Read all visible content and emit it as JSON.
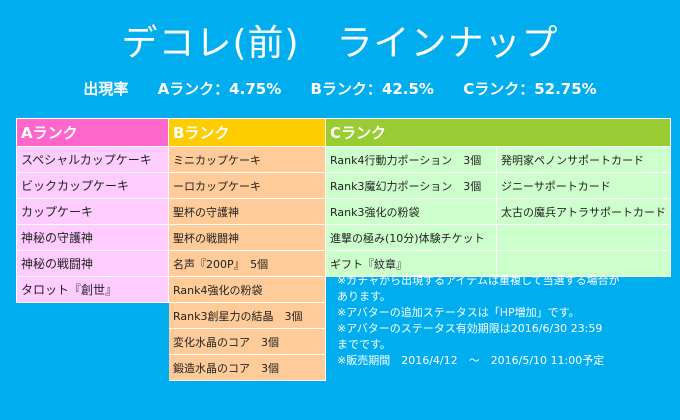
{
  "title": "デコレ(前)　ラインナップ",
  "rates": {
    "label": "出現率",
    "a": "Aランク：4.75%",
    "b": "Bランク：42.5%",
    "c": "Cランク：52.75%"
  },
  "headers": {
    "a": "Aランク",
    "b": "Bランク",
    "c": "Cランク"
  },
  "colors": {
    "background": "#00aeef",
    "rank_a_header": "#ff66cc",
    "rank_b_header": "#ffcc00",
    "rank_c_header": "#99cc33",
    "rank_a_cell": "#ffccff",
    "rank_b_cell": "#ffcc99",
    "rank_c_cell": "#ccffcc"
  },
  "rank_a": [
    "スペシャルカップケーキ",
    "ビックカップケーキ",
    "カップケーキ",
    "神秘の守護神",
    "神秘の戦闘神",
    "タロット『創世』"
  ],
  "rank_b": [
    "ミニカップケーキ",
    "ーロカップケーキ",
    "聖杯の守護神",
    "聖杯の戦闘神",
    "名声『200P』　5個",
    "Rank4強化の粉袋",
    "Rank3創星力の結晶　3個",
    "変化水晶のコア　3個",
    "鍛造水晶のコア　3個"
  ],
  "rank_c_col1": [
    "Rank4行動力ポーション　3個",
    "Rank3魔幻力ポーション　3個",
    "Rank3強化の粉袋",
    "進撃の極み(10分)体験チケット",
    "ギフト『紋章』"
  ],
  "rank_c_col2": [
    "発明家ペノンサポートカード",
    "ジニーサポートカード",
    "太古の魔兵アトラサポートカード",
    "",
    ""
  ],
  "notes": [
    "※ガチャから出現するアイテムは重複して当選する場合が",
    "あります。",
    "※アバターの追加ステータスは「HP増加」です。",
    "※アバターのステータス有効期限は2016/6/30 23:59",
    "までです。",
    "※販売期間　2016/4/12　～　2016/5/10 11:00予定"
  ]
}
